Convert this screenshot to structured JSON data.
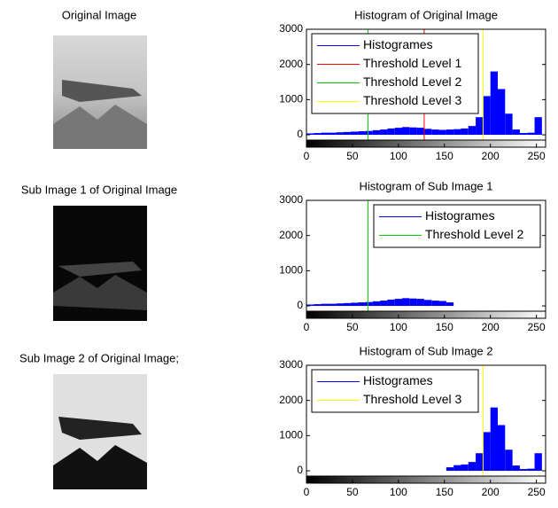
{
  "images": [
    {
      "title": "Original Image"
    },
    {
      "title": "Sub Image 1 of Original Image"
    },
    {
      "title": "Sub Image 2 of Original Image;"
    }
  ],
  "chart_data": [
    {
      "type": "histogram",
      "title": "Histogram of Original Image",
      "bins": [
        0,
        8,
        16,
        24,
        32,
        40,
        48,
        56,
        64,
        72,
        80,
        88,
        96,
        104,
        112,
        120,
        128,
        136,
        144,
        152,
        160,
        168,
        176,
        184,
        192,
        200,
        208,
        216,
        224,
        232,
        240,
        248,
        256
      ],
      "series": [
        {
          "name": "Histogrames",
          "color": "#0000ff",
          "values": [
            40,
            50,
            60,
            60,
            70,
            80,
            90,
            100,
            110,
            130,
            150,
            180,
            200,
            220,
            210,
            200,
            170,
            150,
            140,
            150,
            160,
            180,
            250,
            500,
            1100,
            1800,
            1300,
            600,
            150,
            50,
            60,
            500
          ]
        }
      ],
      "thresholds": [
        {
          "name": "Threshold Level 1",
          "color": "#ff0000",
          "value": 128
        },
        {
          "name": "Threshold Level 2",
          "color": "#00cc00",
          "value": 67
        },
        {
          "name": "Threshold Level 3",
          "color": "#ffff00",
          "value": 192
        }
      ],
      "xlim": [
        0,
        260
      ],
      "ylim": [
        -150,
        3000
      ],
      "xticks": [
        0,
        50,
        100,
        150,
        200,
        250
      ],
      "yticks": [
        0,
        1000,
        2000,
        3000
      ],
      "legend": "upper left"
    },
    {
      "type": "histogram",
      "title": "Histogram of Sub Image 1",
      "bins": [
        0,
        8,
        16,
        24,
        32,
        40,
        48,
        56,
        64,
        72,
        80,
        88,
        96,
        104,
        112,
        120,
        128,
        136,
        144,
        152,
        160,
        168,
        176,
        184,
        192,
        200,
        208,
        216,
        224,
        232,
        240,
        248,
        256
      ],
      "series": [
        {
          "name": "Histogrames",
          "color": "#0000ff",
          "values": [
            40,
            50,
            60,
            60,
            70,
            80,
            90,
            100,
            110,
            130,
            150,
            180,
            200,
            220,
            210,
            200,
            170,
            150,
            140,
            100,
            0,
            0,
            0,
            0,
            0,
            0,
            0,
            0,
            0,
            0,
            0,
            0
          ]
        }
      ],
      "thresholds": [
        {
          "name": "Threshold Level 2",
          "color": "#00cc00",
          "value": 67
        }
      ],
      "xlim": [
        0,
        260
      ],
      "ylim": [
        -150,
        3000
      ],
      "xticks": [
        0,
        50,
        100,
        150,
        200,
        250
      ],
      "yticks": [
        0,
        1000,
        2000,
        3000
      ],
      "legend": "upper right"
    },
    {
      "type": "histogram",
      "title": "Histogram of Sub Image 2",
      "bins": [
        0,
        8,
        16,
        24,
        32,
        40,
        48,
        56,
        64,
        72,
        80,
        88,
        96,
        104,
        112,
        120,
        128,
        136,
        144,
        152,
        160,
        168,
        176,
        184,
        192,
        200,
        208,
        216,
        224,
        232,
        240,
        248,
        256
      ],
      "series": [
        {
          "name": "Histogrames",
          "color": "#0000ff",
          "values": [
            0,
            0,
            0,
            0,
            0,
            0,
            0,
            0,
            0,
            0,
            0,
            0,
            0,
            0,
            0,
            0,
            0,
            0,
            0,
            100,
            160,
            180,
            250,
            500,
            1100,
            1800,
            1300,
            600,
            150,
            50,
            60,
            500
          ]
        }
      ],
      "thresholds": [
        {
          "name": "Threshold Level 3",
          "color": "#ffff00",
          "value": 192
        }
      ],
      "xlim": [
        0,
        260
      ],
      "ylim": [
        -150,
        3000
      ],
      "xticks": [
        0,
        50,
        100,
        150,
        200,
        250
      ],
      "yticks": [
        0,
        1000,
        2000,
        3000
      ],
      "legend": "upper left"
    }
  ]
}
